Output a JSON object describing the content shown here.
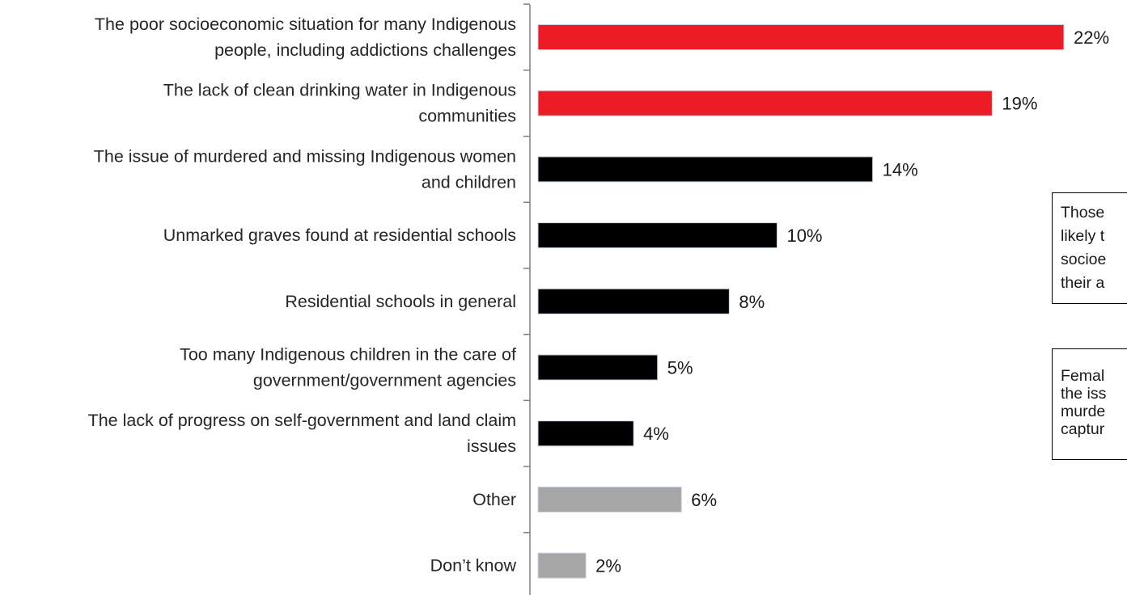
{
  "chart_data": {
    "type": "bar",
    "orientation": "horizontal",
    "categories": [
      [
        "The poor socioeconomic situation for many Indigenous",
        "people, including addictions challenges"
      ],
      [
        "The lack of clean drinking water in Indigenous",
        "communities"
      ],
      [
        "The issue of murdered and missing Indigenous women",
        "and children"
      ],
      [
        "Unmarked graves found at residential schools"
      ],
      [
        "Residential schools in general"
      ],
      [
        "Too many Indigenous children in the care of",
        "government/government agencies"
      ],
      [
        "The lack of progress on self-government and land claim",
        "issues"
      ],
      [
        "Other"
      ],
      [
        "Don’t know"
      ]
    ],
    "values": [
      22,
      19,
      14,
      10,
      8,
      5,
      4,
      6,
      2
    ],
    "value_labels": [
      "22%",
      "19%",
      "14%",
      "10%",
      "8%",
      "5%",
      "4%",
      "6%",
      "2%"
    ],
    "bar_colors": [
      "#ed1c24",
      "#ed1c24",
      "#000000",
      "#000000",
      "#000000",
      "#000000",
      "#000000",
      "#a6a6a6",
      "#a6a6a6"
    ],
    "xlim": [
      0,
      22
    ],
    "grid": false,
    "legend": "none"
  },
  "notes": [
    {
      "lines": [
        "Those",
        "likely t",
        "socioe",
        "their a"
      ]
    },
    {
      "lines": [
        "Femal",
        "the iss",
        "murde",
        "captur"
      ]
    }
  ]
}
